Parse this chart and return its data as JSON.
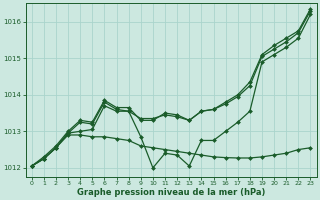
{
  "xlabel": "Graphe pression niveau de la mer (hPa)",
  "bg_color": "#cce8e0",
  "grid_color": "#aad4cc",
  "line_color": "#1a5c2a",
  "text_color": "#1a5c2a",
  "xlim": [
    -0.5,
    23.5
  ],
  "ylim": [
    1011.75,
    1016.5
  ],
  "yticks": [
    1012,
    1013,
    1014,
    1015,
    1016
  ],
  "xticks": [
    0,
    1,
    2,
    3,
    4,
    5,
    6,
    7,
    8,
    9,
    10,
    11,
    12,
    13,
    14,
    15,
    16,
    17,
    18,
    19,
    20,
    21,
    22,
    23
  ],
  "series": [
    [
      1012.05,
      1012.25,
      1012.55,
      1012.95,
      1013.0,
      1013.05,
      1013.7,
      1013.55,
      1013.55,
      1012.85,
      1012.0,
      1012.4,
      1012.35,
      1012.05,
      1012.75,
      1012.75,
      1013.0,
      1013.25,
      1013.55,
      1014.9,
      1015.1,
      1015.3,
      1015.55,
      1016.2
    ],
    [
      1012.05,
      1012.25,
      1012.55,
      1012.95,
      1013.25,
      1013.2,
      1013.8,
      1013.6,
      1013.55,
      1013.35,
      1013.35,
      1013.45,
      1013.4,
      1013.3,
      1013.55,
      1013.6,
      1013.75,
      1013.95,
      1014.25,
      1015.05,
      1015.25,
      1015.45,
      1015.7,
      1016.3
    ],
    [
      1012.05,
      1012.3,
      1012.6,
      1013.0,
      1013.3,
      1013.25,
      1013.85,
      1013.65,
      1013.65,
      1013.3,
      1013.3,
      1013.5,
      1013.45,
      1013.3,
      1013.55,
      1013.6,
      1013.8,
      1014.0,
      1014.35,
      1015.1,
      1015.35,
      1015.55,
      1015.75,
      1016.35
    ],
    [
      1012.05,
      1012.25,
      1012.55,
      1012.9,
      1012.9,
      1012.85,
      1012.85,
      1012.8,
      1012.75,
      1012.6,
      1012.55,
      1012.5,
      1012.45,
      1012.4,
      1012.35,
      1012.3,
      1012.28,
      1012.27,
      1012.27,
      1012.3,
      1012.35,
      1012.4,
      1012.5,
      1012.55
    ]
  ]
}
